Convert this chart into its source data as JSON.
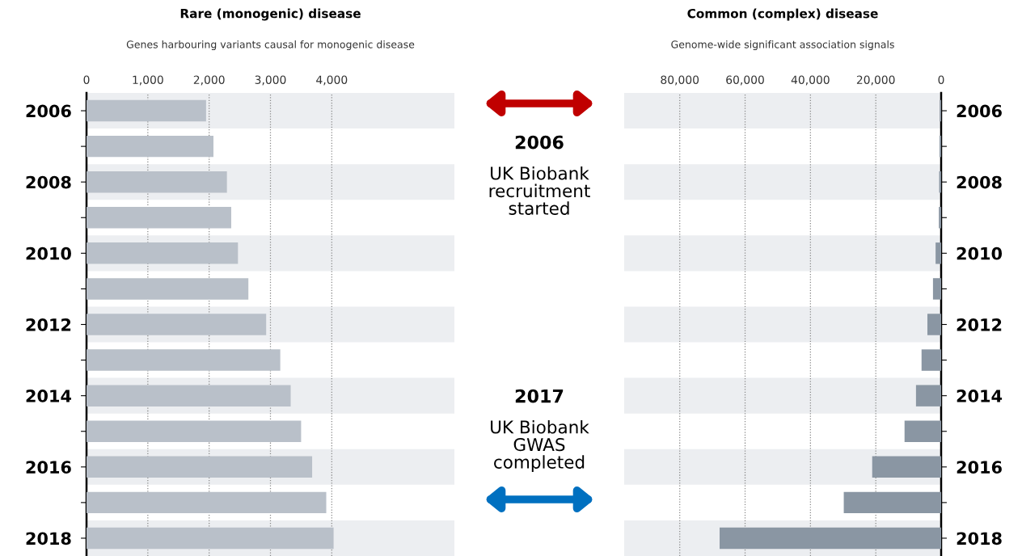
{
  "chart_data": [
    {
      "type": "bar",
      "orientation": "horizontal",
      "title": "Rare (monogenic) disease",
      "subtitle": "Genes harbouring variants causal for monogenic disease",
      "categories": [
        "2006",
        null,
        "2008",
        null,
        "2010",
        null,
        "2012",
        null,
        "2014",
        null,
        "2016",
        null,
        "2018"
      ],
      "values": [
        1950,
        2070,
        2290,
        2360,
        2470,
        2640,
        2930,
        3160,
        3330,
        3500,
        3680,
        3910,
        4030
      ],
      "color": "#b9c0c9",
      "xlim": [
        0,
        6000
      ],
      "xticks": [
        0,
        {
          "value": 1000,
          "label": "1,000"
        },
        {
          "value": 2000,
          "label": "2,000"
        },
        {
          "value": 3000,
          "label": "3,000"
        },
        {
          "value": 4000,
          "label": "4,000"
        }
      ],
      "grid": "x",
      "annotations": [
        "2006",
        "UK Biobank\nrecruitment\nstarted",
        "2017",
        "UK Biobank\nGWAS\ncompleted"
      ]
    },
    {
      "type": "bar",
      "orientation": "horizontal",
      "title": "Common (complex) disease",
      "subtitle": "Genome-wide significant association signals",
      "categories": [
        "2006",
        null,
        "2008",
        null,
        "2010",
        null,
        "2012",
        null,
        "2014",
        null,
        "2016",
        null,
        "2018"
      ],
      "values": [
        400,
        500,
        600,
        700,
        1700,
        2500,
        4200,
        6000,
        7700,
        11200,
        21100,
        29800,
        67800
      ],
      "color": "#8a96a3",
      "xlim": [
        97000,
        0
      ],
      "xticks": [
        {
          "value": 80000,
          "label": "80,000"
        },
        {
          "value": 60000,
          "label": "60,000"
        },
        {
          "value": 40000,
          "label": "40,000"
        },
        {
          "value": 20000,
          "label": "20,000"
        },
        0
      ],
      "grid": "x"
    }
  ]
}
